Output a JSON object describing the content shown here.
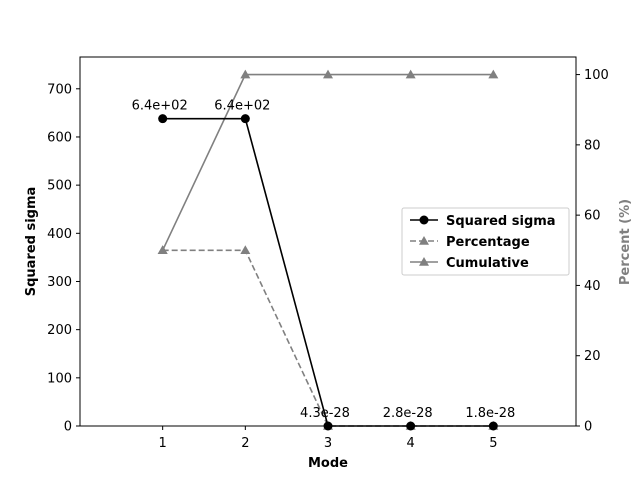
{
  "chart_data": {
    "type": "line",
    "x": [
      1,
      2,
      3,
      4,
      5
    ],
    "xlabel": "Mode",
    "ylabel_left": "Squared sigma",
    "ylabel_right": "Percent (%)",
    "xlim": [
      0,
      6
    ],
    "ylim_left": [
      0,
      766
    ],
    "ylim_right": [
      0,
      105
    ],
    "x_ticks": [
      1,
      2,
      3,
      4,
      5
    ],
    "y_ticks_left": [
      0,
      100,
      200,
      300,
      400,
      500,
      600,
      700
    ],
    "y_ticks_right": [
      0,
      20,
      40,
      60,
      80,
      100
    ],
    "grid": false,
    "legend_position": "center-right",
    "series": [
      {
        "name": "Squared sigma",
        "axis": "left",
        "marker": "circle",
        "linestyle": "solid",
        "color": "#000000",
        "values": [
          638,
          638,
          0,
          0,
          0
        ]
      },
      {
        "name": "Percentage",
        "axis": "right",
        "marker": "triangle",
        "linestyle": "dashed",
        "color": "#808080",
        "values": [
          50,
          50,
          0,
          0,
          0
        ]
      },
      {
        "name": "Cumulative",
        "axis": "right",
        "marker": "triangle",
        "linestyle": "solid",
        "color": "#808080",
        "values": [
          50,
          100,
          100,
          100,
          100
        ]
      }
    ],
    "annotations": [
      "6.4e+02",
      "6.4e+02",
      "4.3e-28",
      "2.8e-28",
      "1.8e-28"
    ]
  }
}
